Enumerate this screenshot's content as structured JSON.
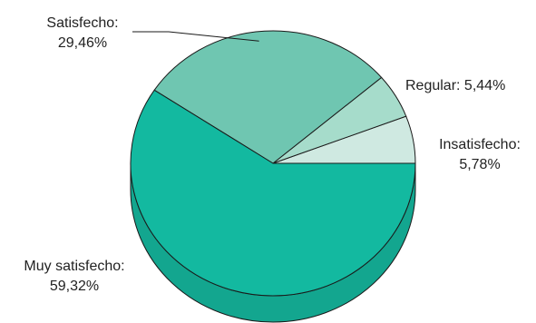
{
  "chart_data": {
    "type": "pie",
    "title": "",
    "slices": [
      {
        "label": "Insatisfecho:",
        "pct_text": "5,78%",
        "value": 5.78,
        "color": "#cfe9e1"
      },
      {
        "label": "Regular: 5,44%",
        "pct_text": "",
        "value": 5.44,
        "color": "#a6dccb"
      },
      {
        "label": "Satisfecho:",
        "pct_text": "29,46%",
        "value": 29.46,
        "color": "#6fc6b1"
      },
      {
        "label": "Muy satisfecho:",
        "pct_text": "59,32%",
        "value": 59.32,
        "color": "#13b9a0"
      }
    ],
    "side_color": "#13a68f",
    "outline_color": "#1a1a1a"
  }
}
